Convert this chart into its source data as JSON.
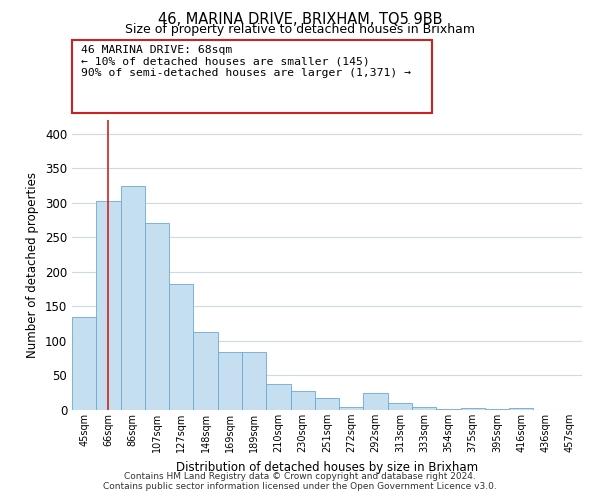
{
  "title": "46, MARINA DRIVE, BRIXHAM, TQ5 9BB",
  "subtitle": "Size of property relative to detached houses in Brixham",
  "xlabel": "Distribution of detached houses by size in Brixham",
  "ylabel": "Number of detached properties",
  "bar_values": [
    135,
    303,
    325,
    271,
    183,
    113,
    84,
    84,
    37,
    27,
    18,
    5,
    25,
    10,
    5,
    2,
    3,
    1,
    3,
    0,
    0
  ],
  "bar_labels": [
    "45sqm",
    "66sqm",
    "86sqm",
    "107sqm",
    "127sqm",
    "148sqm",
    "169sqm",
    "189sqm",
    "210sqm",
    "230sqm",
    "251sqm",
    "272sqm",
    "292sqm",
    "313sqm",
    "333sqm",
    "354sqm",
    "375sqm",
    "395sqm",
    "416sqm",
    "436sqm",
    "457sqm"
  ],
  "bar_color": "#c5dff0",
  "bar_edge_color": "#6aaad4",
  "highlight_line_color": "#cc2222",
  "annotation_title": "46 MARINA DRIVE: 68sqm",
  "annotation_line2": "← 10% of detached houses are smaller (145)",
  "annotation_line3": "90% of semi-detached houses are larger (1,371) →",
  "ylim": [
    0,
    420
  ],
  "yticks": [
    0,
    50,
    100,
    150,
    200,
    250,
    300,
    350,
    400
  ],
  "footer_line1": "Contains HM Land Registry data © Crown copyright and database right 2024.",
  "footer_line2": "Contains public sector information licensed under the Open Government Licence v3.0.",
  "background_color": "#ffffff",
  "grid_color": "#ccd9e8"
}
